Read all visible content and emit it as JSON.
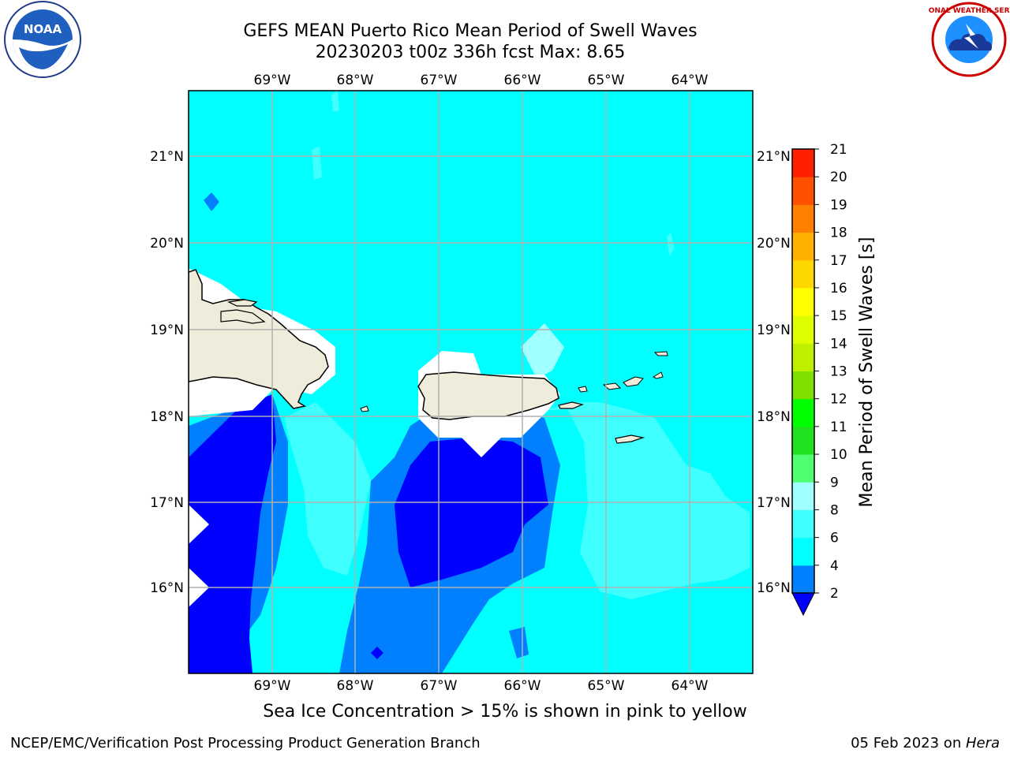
{
  "title": {
    "line1": "GEFS MEAN Puerto Rico Mean Period of Swell Waves",
    "line2": "20230203 t00z 336h fcst   Max: 8.65"
  },
  "map": {
    "lon_ticks": [
      "69°W",
      "68°W",
      "67°W",
      "66°W",
      "65°W",
      "64°W"
    ],
    "lat_ticks": [
      "21°N",
      "20°N",
      "19°N",
      "18°N",
      "17°N",
      "16°N"
    ],
    "land_color": "#efecdb",
    "ocean_default_color": "#00ffff"
  },
  "colorbar": {
    "label": "Mean Period of Swell Waves [s]",
    "levels": [
      "2",
      "4",
      "6",
      "8",
      "9",
      "10",
      "11",
      "12",
      "13",
      "14",
      "15",
      "16",
      "17",
      "18",
      "19",
      "20",
      "21"
    ],
    "colors": [
      "#0000ff",
      "#0080ff",
      "#00ffff",
      "#40ffff",
      "#a0ffff",
      "#50ff70",
      "#20e020",
      "#00ff00",
      "#7fdf00",
      "#bff000",
      "#dfff00",
      "#ffff00",
      "#ffd700",
      "#ffb000",
      "#ff8000",
      "#ff5000",
      "#ff2000",
      "#ff0000"
    ]
  },
  "caption": "Sea Ice Concentration > 15% is shown in pink to yellow",
  "footer": {
    "left": "NCEP/EMC/Verification Post Processing Product Generation Branch",
    "date": "05 Feb 2023 on ",
    "host": "Hera"
  },
  "logos": {
    "noaa": "NOAA",
    "nws": "NATIONAL WEATHER SERVICE"
  }
}
